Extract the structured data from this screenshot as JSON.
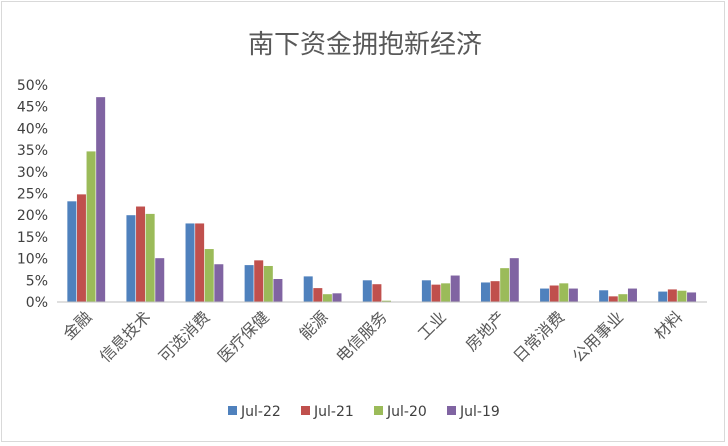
{
  "chart_data": {
    "type": "bar",
    "title": "南下资金拥抱新经济",
    "categories": [
      "金融",
      "信息技术",
      "可选消费",
      "医疗保健",
      "能源",
      "电信服务",
      "工业",
      "房地产",
      "日常消费",
      "公用事业",
      "材料"
    ],
    "series": [
      {
        "name": "Jul-22",
        "color": "#4f81bd",
        "values": [
          23.2,
          20.0,
          18.1,
          8.5,
          5.9,
          5.0,
          5.0,
          4.5,
          3.1,
          2.7,
          2.4
        ]
      },
      {
        "name": "Jul-21",
        "color": "#c0504d",
        "values": [
          24.8,
          22.0,
          18.1,
          9.6,
          3.2,
          4.1,
          4.0,
          4.8,
          3.8,
          1.3,
          2.9
        ]
      },
      {
        "name": "Jul-20",
        "color": "#9bbb59",
        "values": [
          34.7,
          20.3,
          12.2,
          8.3,
          1.8,
          0.3,
          4.3,
          7.8,
          4.3,
          1.8,
          2.6
        ]
      },
      {
        "name": "Jul-19",
        "color": "#8064a2",
        "values": [
          47.2,
          10.1,
          8.7,
          5.3,
          2.0,
          0.1,
          6.1,
          10.1,
          3.1,
          3.1,
          2.2
        ]
      }
    ],
    "ylim": [
      0,
      50
    ],
    "yticks": [
      "0%",
      "5%",
      "10%",
      "15%",
      "20%",
      "25%",
      "30%",
      "35%",
      "40%",
      "45%",
      "50%"
    ],
    "legend_position": "bottom",
    "grid": false
  }
}
